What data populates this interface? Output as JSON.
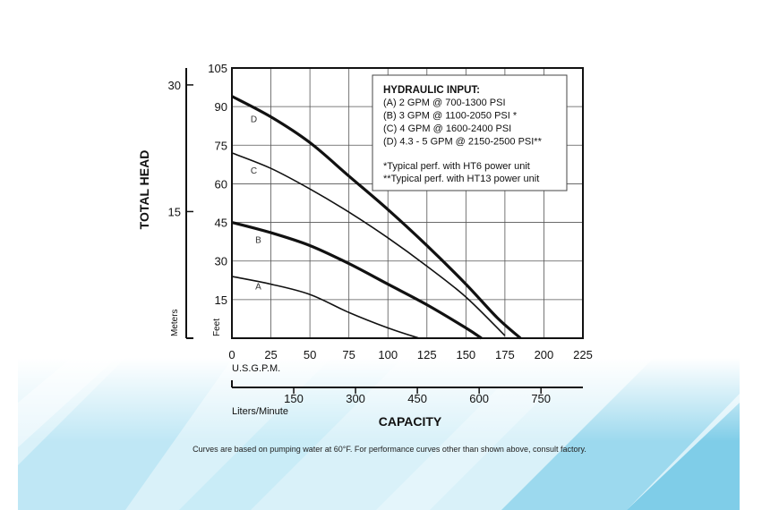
{
  "chart_data": {
    "type": "line",
    "ylabel": "TOTAL HEAD",
    "xlabel": "CAPACITY",
    "x_unit_primary": "U.S.G.P.M.",
    "x_unit_secondary": "Liters/Minute",
    "y_unit_primary": "Feet",
    "y_unit_secondary": "Meters",
    "xlim": [
      0,
      225
    ],
    "ylim": [
      0,
      105
    ],
    "x_ticks": [
      "0",
      "25",
      "50",
      "75",
      "100",
      "125",
      "150",
      "175",
      "200",
      "225"
    ],
    "y_ticks": [
      "15",
      "30",
      "45",
      "60",
      "75",
      "90",
      "105"
    ],
    "x2_ticks": [
      {
        "value": 150,
        "label": "150"
      },
      {
        "value": 300,
        "label": "300"
      },
      {
        "value": 450,
        "label": "450"
      },
      {
        "value": 600,
        "label": "600"
      },
      {
        "value": 750,
        "label": "750"
      }
    ],
    "y2_ticks": [
      {
        "value": 15,
        "label": "15"
      },
      {
        "value": 30,
        "label": "30"
      }
    ],
    "grid": true,
    "series": [
      {
        "name": "A",
        "label_at": [
          15,
          19
        ],
        "stroke": "thin",
        "points": [
          [
            0,
            24
          ],
          [
            25,
            21
          ],
          [
            50,
            17
          ],
          [
            75,
            10
          ],
          [
            100,
            4
          ],
          [
            120,
            0
          ]
        ]
      },
      {
        "name": "B",
        "label_at": [
          15,
          37
        ],
        "stroke": "thick",
        "points": [
          [
            0,
            45
          ],
          [
            25,
            41
          ],
          [
            50,
            36
          ],
          [
            75,
            29
          ],
          [
            100,
            21
          ],
          [
            125,
            13
          ],
          [
            150,
            4
          ],
          [
            160,
            0
          ]
        ]
      },
      {
        "name": "C",
        "label_at": [
          12,
          64
        ],
        "stroke": "thin",
        "points": [
          [
            0,
            72
          ],
          [
            25,
            66
          ],
          [
            50,
            58
          ],
          [
            75,
            49
          ],
          [
            100,
            39
          ],
          [
            125,
            28
          ],
          [
            150,
            16
          ],
          [
            175,
            1
          ]
        ]
      },
      {
        "name": "D",
        "label_at": [
          12,
          84
        ],
        "stroke": "thick",
        "points": [
          [
            0,
            94
          ],
          [
            25,
            86
          ],
          [
            50,
            76
          ],
          [
            75,
            63
          ],
          [
            100,
            50
          ],
          [
            125,
            36
          ],
          [
            150,
            21
          ],
          [
            170,
            8
          ],
          [
            185,
            0
          ]
        ]
      }
    ],
    "legend": {
      "position": "top-right",
      "title": "HYDRAULIC INPUT:",
      "entries": [
        "(A) 2 GPM @ 700-1300 PSI",
        "(B) 3 GPM @ 1100-2050 PSI *",
        "(C) 4 GPM @ 1600-2400 PSI",
        "(D) 4.3 - 5 GPM @ 2150-2500 PSI**"
      ],
      "notes": [
        "*Typical perf. with HT6 power unit",
        "**Typical perf. with HT13 power unit"
      ]
    }
  },
  "footnote": "Curves are based on pumping water at 60°F. For performance curves other than shown above, consult factory.",
  "colors": {
    "grid": "#555555",
    "axis": "#111111",
    "text": "#111111",
    "bg_accent": "#8fd3ea"
  }
}
